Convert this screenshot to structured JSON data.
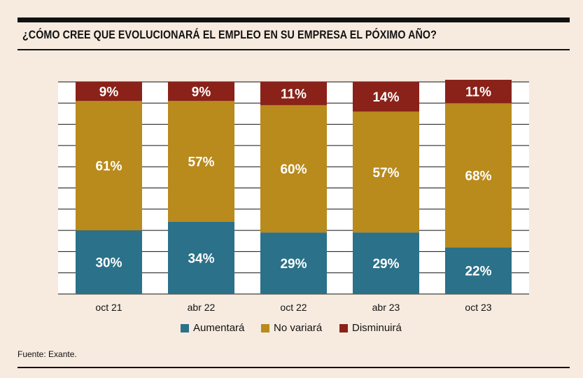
{
  "title": "¿CÓMO CREE QUE EVOLUCIONARÁ EL EMPLEO EN SU EMPRESA EL PÓXIMO AÑO?",
  "source": "Fuente: Exante.",
  "colors": {
    "aumentara": "#2a7189",
    "no_variara": "#b98a1c",
    "disminuira": "#8a2219",
    "background": "#f7ebe0"
  },
  "chart_data": {
    "type": "bar",
    "stacked": true,
    "categories": [
      "oct 21",
      "abr 22",
      "oct 22",
      "abr 23",
      "oct 23"
    ],
    "series": [
      {
        "name": "Aumentará",
        "values": [
          30,
          34,
          29,
          29,
          22
        ],
        "labels": [
          "30%",
          "34%",
          "29%",
          "29%",
          "22%"
        ]
      },
      {
        "name": "No variará",
        "values": [
          61,
          57,
          60,
          57,
          68
        ],
        "labels": [
          "61%",
          "57%",
          "60%",
          "57%",
          "68%"
        ]
      },
      {
        "name": "Disminuirá",
        "values": [
          9,
          9,
          11,
          14,
          11
        ],
        "labels": [
          "9%",
          "9%",
          "11%",
          "14%",
          "11%"
        ]
      }
    ],
    "ylim": [
      0,
      100
    ],
    "grid": true,
    "legend": "bottom-center"
  }
}
